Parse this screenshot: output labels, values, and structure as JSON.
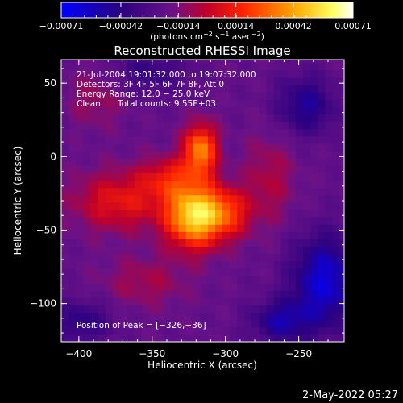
{
  "chart_data": {
    "type": "heatmap",
    "title": "Reconstructed RHESSI Image",
    "xlabel": "Heliocentric X (arcsec)",
    "ylabel": "Heliocentric Y (arcsec)",
    "xlim": [
      -412,
      -219
    ],
    "ylim": [
      -126,
      66
    ],
    "x_ticks": [
      -400,
      -350,
      -300,
      -250
    ],
    "y_ticks": [
      50,
      0,
      -50,
      -100
    ],
    "x_tick_labels": [
      "−400",
      "−350",
      "−300",
      "−250"
    ],
    "y_tick_labels": [
      "50",
      "0",
      "−50",
      "−100"
    ],
    "annotations": [
      "21-Jul-2004 19:01:32.000 to 19:07:32.000",
      "Detectors: 3F 4F 5F 6F 7F 8F, Att 0",
      "Energy Range: 12.0 − 25.0 keV",
      "Clean",
      "Total counts: 9.55E+03"
    ],
    "peak_label": "Position of Peak = [−326,−36]",
    "peak": [
      -326,
      -36
    ],
    "colorbar": {
      "range": [
        -0.00071,
        0.00071
      ],
      "tick_values": [
        -0.00071,
        -0.00042,
        -0.00014,
        0.00014,
        0.00042,
        0.00071
      ],
      "tick_labels": [
        "−0.00071",
        "−0.00042",
        "−0.00014",
        "0.00014",
        "0.00042",
        "0.00071"
      ],
      "units_label": "(photons cm",
      "units_exp1": "−2",
      "units_mid": " s",
      "units_exp2": "−1",
      "units_mid2": " asec",
      "units_exp3": "−2",
      "units_end": ")",
      "colormap": "blue-purple-red-orange-yellow-white"
    },
    "sources": [
      {
        "x": -322,
        "y": -40,
        "sx": 13,
        "sy": 15,
        "amp": 0.00071
      },
      {
        "x": -317,
        "y": 5,
        "sx": 8,
        "sy": 12,
        "amp": 0.00055
      },
      {
        "x": -300,
        "y": -38,
        "sx": 12,
        "sy": 12,
        "amp": 0.00036
      },
      {
        "x": -372,
        "y": -30,
        "sx": 22,
        "sy": 14,
        "amp": 0.0003
      },
      {
        "x": -338,
        "y": -14,
        "sx": 14,
        "sy": 10,
        "amp": 0.00026
      },
      {
        "x": -270,
        "y": -15,
        "sx": 12,
        "sy": 22,
        "amp": 0.00016
      },
      {
        "x": -388,
        "y": 40,
        "sx": 14,
        "sy": 14,
        "amp": 0.00012
      },
      {
        "x": -355,
        "y": -85,
        "sx": 20,
        "sy": 12,
        "amp": 0.00014
      },
      {
        "x": -245,
        "y": 35,
        "sx": 14,
        "sy": 14,
        "amp": -0.00028
      },
      {
        "x": -232,
        "y": -85,
        "sx": 16,
        "sy": 22,
        "amp": -0.00042
      },
      {
        "x": -262,
        "y": -112,
        "sx": 14,
        "sy": 10,
        "amp": -0.0003
      },
      {
        "x": -398,
        "y": -112,
        "sx": 14,
        "sy": 10,
        "amp": -0.00022
      },
      {
        "x": -352,
        "y": 58,
        "sx": 18,
        "sy": 10,
        "amp": -0.00018
      }
    ]
  },
  "footer": {
    "timestamp": "2-May-2022 05:27"
  }
}
